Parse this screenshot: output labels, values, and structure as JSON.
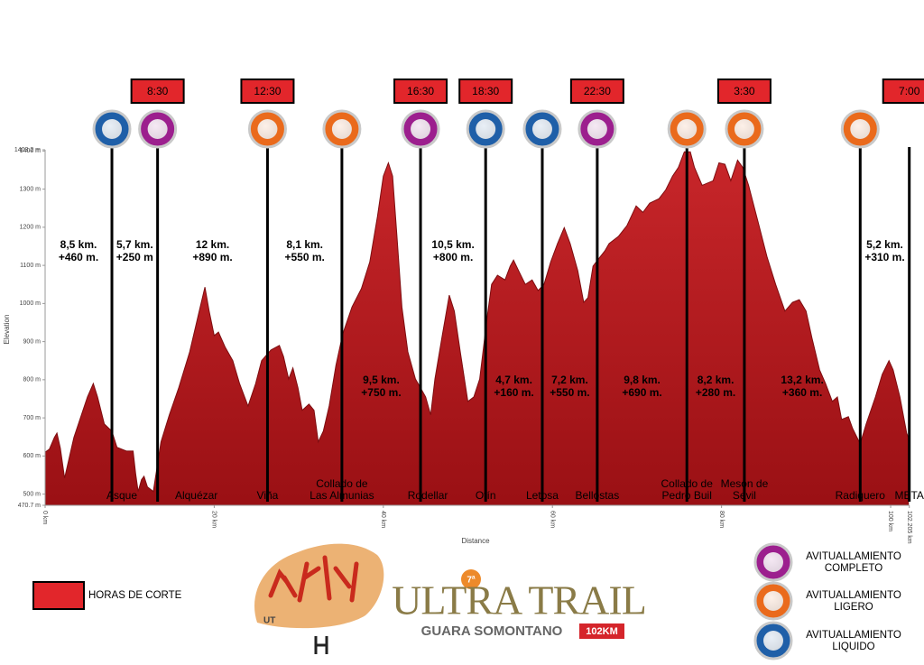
{
  "chart_data": {
    "type": "area",
    "x_label": "Distance",
    "y_label": "Elevation",
    "color": "#c21b1f",
    "xlim": [
      0,
      102.205
    ],
    "ylim": [
      470.7,
      1403.2
    ],
    "xticks": [
      {
        "value": 0,
        "label": "0 km"
      },
      {
        "value": 20,
        "label": "20 km"
      },
      {
        "value": 40,
        "label": "40 km"
      },
      {
        "value": 60,
        "label": "60 km"
      },
      {
        "value": 80,
        "label": "80 km"
      },
      {
        "value": 100,
        "label": "100 km"
      },
      {
        "value": 102.205,
        "label": "102.205 km"
      }
    ],
    "yticks": [
      {
        "value": 470.7,
        "label": "470.7 m"
      },
      {
        "value": 500,
        "label": "500 m"
      },
      {
        "value": 600,
        "label": "600 m"
      },
      {
        "value": 700,
        "label": "700 m"
      },
      {
        "value": 800,
        "label": "800 m"
      },
      {
        "value": 900,
        "label": "900 m"
      },
      {
        "value": 1000,
        "label": "1000 m"
      },
      {
        "value": 1100,
        "label": "1100 m"
      },
      {
        "value": 1200,
        "label": "1200 m"
      },
      {
        "value": 1300,
        "label": "1300 m"
      },
      {
        "value": 1400,
        "label": "1400 m"
      },
      {
        "value": 1403.2,
        "label": "1403.2 m"
      }
    ],
    "x": [
      0,
      0.5,
      1.1,
      1.4,
      1.8,
      2.3,
      2.8,
      3.4,
      4.3,
      5.0,
      5.7,
      6.2,
      7.0,
      7.9,
      8.5,
      9.6,
      10.4,
      10.7,
      11.0,
      11.4,
      11.7,
      12.1,
      12.8,
      13.7,
      14.7,
      15.8,
      17.1,
      18.1,
      18.9,
      19.4,
      20.0,
      20.5,
      21.3,
      22.2,
      23.0,
      24.0,
      24.9,
      25.6,
      26.7,
      27.7,
      28.2,
      28.8,
      29.3,
      29.9,
      30.4,
      31.2,
      31.8,
      32.3,
      32.9,
      33.6,
      34.4,
      35.2,
      36.3,
      37.4,
      38.4,
      39.3,
      40.0,
      40.6,
      41.1,
      41.6,
      42.2,
      42.9,
      43.8,
      44.4,
      45.0,
      45.6,
      46.1,
      47.0,
      47.8,
      48.4,
      49.1,
      50.0,
      50.7,
      51.4,
      52.3,
      52.8,
      53.5,
      54.4,
      55.0,
      55.4,
      56.0,
      56.8,
      57.6,
      58.3,
      59.0,
      59.8,
      60.6,
      61.4,
      62.1,
      63.0,
      63.7,
      64.2,
      64.8,
      65.6,
      66.2,
      66.7,
      67.8,
      68.8,
      69.9,
      70.7,
      71.5,
      72.6,
      73.4,
      74.2,
      74.9,
      75.6,
      76.3,
      76.8,
      77.7,
      79.0,
      79.7,
      80.4,
      81.1,
      81.9,
      82.5,
      83.2,
      84.3,
      85.4,
      86.4,
      87.5,
      88.4,
      89.2,
      90.0,
      90.7,
      91.6,
      92.3,
      93.1,
      93.7,
      94.2,
      95.0,
      95.5,
      96.4,
      97.1,
      98.2,
      99.0,
      99.8,
      100.3,
      101.1,
      101.9,
      102.1
    ],
    "values": [
      610,
      618,
      649,
      660,
      620,
      542,
      590,
      649,
      708,
      755,
      790,
      755,
      684,
      665,
      623,
      613,
      613,
      554,
      507,
      538,
      547,
      519,
      507,
      637,
      708,
      779,
      873,
      968,
      1043,
      980,
      916,
      925,
      885,
      850,
      790,
      731,
      790,
      850,
      878,
      890,
      861,
      802,
      831,
      779,
      720,
      736,
      720,
      637,
      665,
      731,
      838,
      920,
      991,
      1039,
      1109,
      1228,
      1334,
      1369,
      1334,
      1180,
      991,
      873,
      802,
      779,
      755,
      708,
      802,
      920,
      1022,
      980,
      873,
      743,
      755,
      802,
      968,
      1050,
      1074,
      1062,
      1098,
      1114,
      1086,
      1050,
      1062,
      1034,
      1050,
      1109,
      1157,
      1199,
      1157,
      1086,
      1003,
      1015,
      1098,
      1121,
      1138,
      1157,
      1176,
      1204,
      1256,
      1239,
      1263,
      1275,
      1298,
      1334,
      1357,
      1398,
      1398,
      1357,
      1310,
      1322,
      1369,
      1365,
      1322,
      1376,
      1357,
      1310,
      1216,
      1121,
      1050,
      980,
      1003,
      1010,
      980,
      909,
      826,
      790,
      743,
      755,
      696,
      703,
      672,
      632,
      684,
      755,
      814,
      850,
      826,
      755,
      660,
      649
    ],
    "stations": [
      {
        "name": [
          "Asque"
        ],
        "km": 7.9,
        "supply": 2,
        "cutoff": null
      },
      {
        "name": [
          "Alquézar"
        ],
        "km": 13.3,
        "supply": 0,
        "cutoff": "8:30"
      },
      {
        "name": [
          "Viña"
        ],
        "km": 26.3,
        "supply": 1,
        "cutoff": "12:30"
      },
      {
        "name": [
          "Collado de",
          "Las Almunias"
        ],
        "km": 35.1,
        "supply": 1,
        "cutoff": null
      },
      {
        "name": [
          "Rodellar"
        ],
        "km": 44.4,
        "supply": 0,
        "cutoff": "16:30"
      },
      {
        "name": [
          "Otín"
        ],
        "km": 52.1,
        "supply": 2,
        "cutoff": "18:30"
      },
      {
        "name": [
          "Letosa"
        ],
        "km": 58.8,
        "supply": 2,
        "cutoff": null
      },
      {
        "name": [
          "Bellostas"
        ],
        "km": 65.3,
        "supply": 0,
        "cutoff": "22:30"
      },
      {
        "name": [
          "Collado de",
          "Pedro Buil"
        ],
        "km": 75.9,
        "supply": 1,
        "cutoff": null
      },
      {
        "name": [
          "Mesón de",
          "Sevil"
        ],
        "km": 82.7,
        "supply": 1,
        "cutoff": "3:30"
      },
      {
        "name": [
          "Radiquero"
        ],
        "km": 96.4,
        "supply": 1,
        "cutoff": null
      },
      {
        "name": [
          "META"
        ],
        "km": 102.205,
        "supply": null,
        "cutoff": "7:00"
      }
    ],
    "segments": [
      {
        "distance": "8,5 km.",
        "gain": "+460 m."
      },
      {
        "distance": "5,7 km.",
        "gain": "+250 m"
      },
      {
        "distance": "12 km.",
        "gain": "+890 m."
      },
      {
        "distance": "8,1 km.",
        "gain": "+550 m."
      },
      {
        "distance": "9,5 km.",
        "gain": "+750 m."
      },
      {
        "distance": "10,5 km.",
        "gain": "+800 m."
      },
      {
        "distance": "4,7 km.",
        "gain": "+160 m."
      },
      {
        "distance": "7,2 km.",
        "gain": "+550 m."
      },
      {
        "distance": "9,8 km.",
        "gain": "+690 m."
      },
      {
        "distance": "8,2 km.",
        "gain": "+280 m."
      },
      {
        "distance": "13,2 km.",
        "gain": "+360 m."
      },
      {
        "distance": "5,2 km.",
        "gain": "+310 m."
      }
    ],
    "cutoff_legend": {
      "label": "HORAS DE CORTE",
      "color": "#e2262b"
    },
    "supplies": [
      {
        "label": [
          "AVITUALLAMIENTO",
          "COMPLETO"
        ],
        "color": "#9c1f8e"
      },
      {
        "label": [
          "AVITUALLAMIENTO",
          "LIGERO"
        ],
        "color": "#ea6a1c"
      },
      {
        "label": [
          "AVITUALLAMIENTO",
          "LIQUIDO"
        ],
        "color": "#1f5fa8"
      }
    ]
  },
  "logo": {
    "title": "ULTRA TRAIL",
    "subtitle": "GUARA SOMONTANO",
    "distance": "102KM",
    "edition": "7ª",
    "club": "UT"
  }
}
